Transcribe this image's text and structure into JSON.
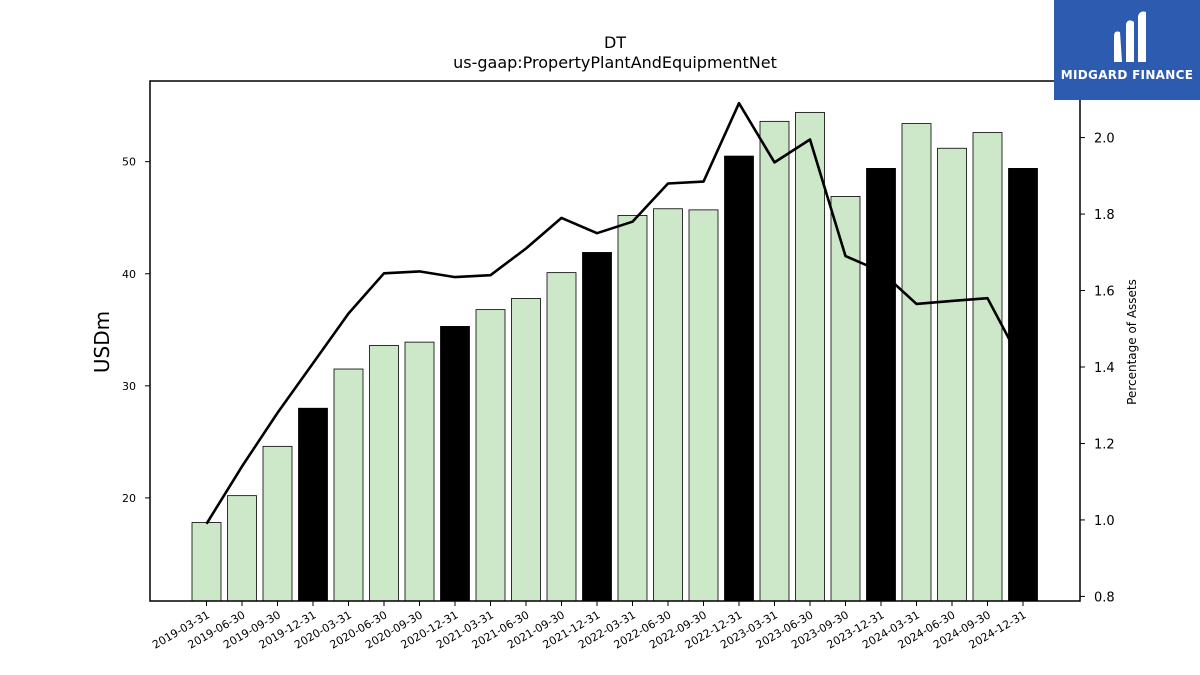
{
  "chart_data": {
    "type": "bar",
    "title": "DT",
    "subtitle": "us-gaap:PropertyPlantAndEquipmentNet",
    "ylabel": "USDm",
    "y2label": "Percentage of Assets",
    "ylim": [
      10.8,
      57.2
    ],
    "y2lim": [
      0.788,
      2.148
    ],
    "yticks": [
      20,
      30,
      40,
      50
    ],
    "y2ticks": [
      0.8,
      1.0,
      1.2,
      1.4,
      1.6,
      1.8,
      2.0
    ],
    "categories": [
      "2019-03-31",
      "2019-06-30",
      "2019-09-30",
      "2019-12-31",
      "2020-03-31",
      "2020-06-30",
      "2020-09-30",
      "2020-12-31",
      "2021-03-31",
      "2021-06-30",
      "2021-09-30",
      "2021-12-31",
      "2022-03-31",
      "2022-06-30",
      "2022-09-30",
      "2022-12-31",
      "2023-03-31",
      "2023-06-30",
      "2023-09-30",
      "2023-12-31",
      "2024-03-31",
      "2024-06-30",
      "2024-09-30",
      "2024-12-31"
    ],
    "series": [
      {
        "type": "bar",
        "axis": "left",
        "values": [
          17.8,
          20.2,
          24.6,
          28.0,
          31.5,
          33.6,
          33.9,
          35.3,
          36.8,
          37.8,
          40.1,
          41.9,
          45.2,
          45.8,
          45.7,
          50.5,
          53.6,
          54.4,
          46.9,
          49.4,
          53.4,
          51.2,
          52.6,
          49.4
        ],
        "highlight": [
          false,
          false,
          false,
          true,
          false,
          false,
          false,
          true,
          false,
          false,
          false,
          true,
          false,
          false,
          false,
          true,
          false,
          false,
          false,
          true,
          false,
          false,
          false,
          true
        ]
      },
      {
        "type": "line",
        "axis": "right",
        "values": [
          0.99,
          1.14,
          1.28,
          1.41,
          1.54,
          1.645,
          1.65,
          1.635,
          1.64,
          1.71,
          1.79,
          1.75,
          1.78,
          1.88,
          1.885,
          2.09,
          1.935,
          1.995,
          1.69,
          1.65,
          1.565,
          1.573,
          1.58,
          1.405
        ]
      }
    ],
    "colors": {
      "bar": "#cce8c8",
      "bar_highlight": "#000000",
      "bar_edge": "#000000",
      "line": "#000000"
    }
  },
  "logo": {
    "text": "MIDGARD FINANCE",
    "background": "#2d5bb0"
  }
}
